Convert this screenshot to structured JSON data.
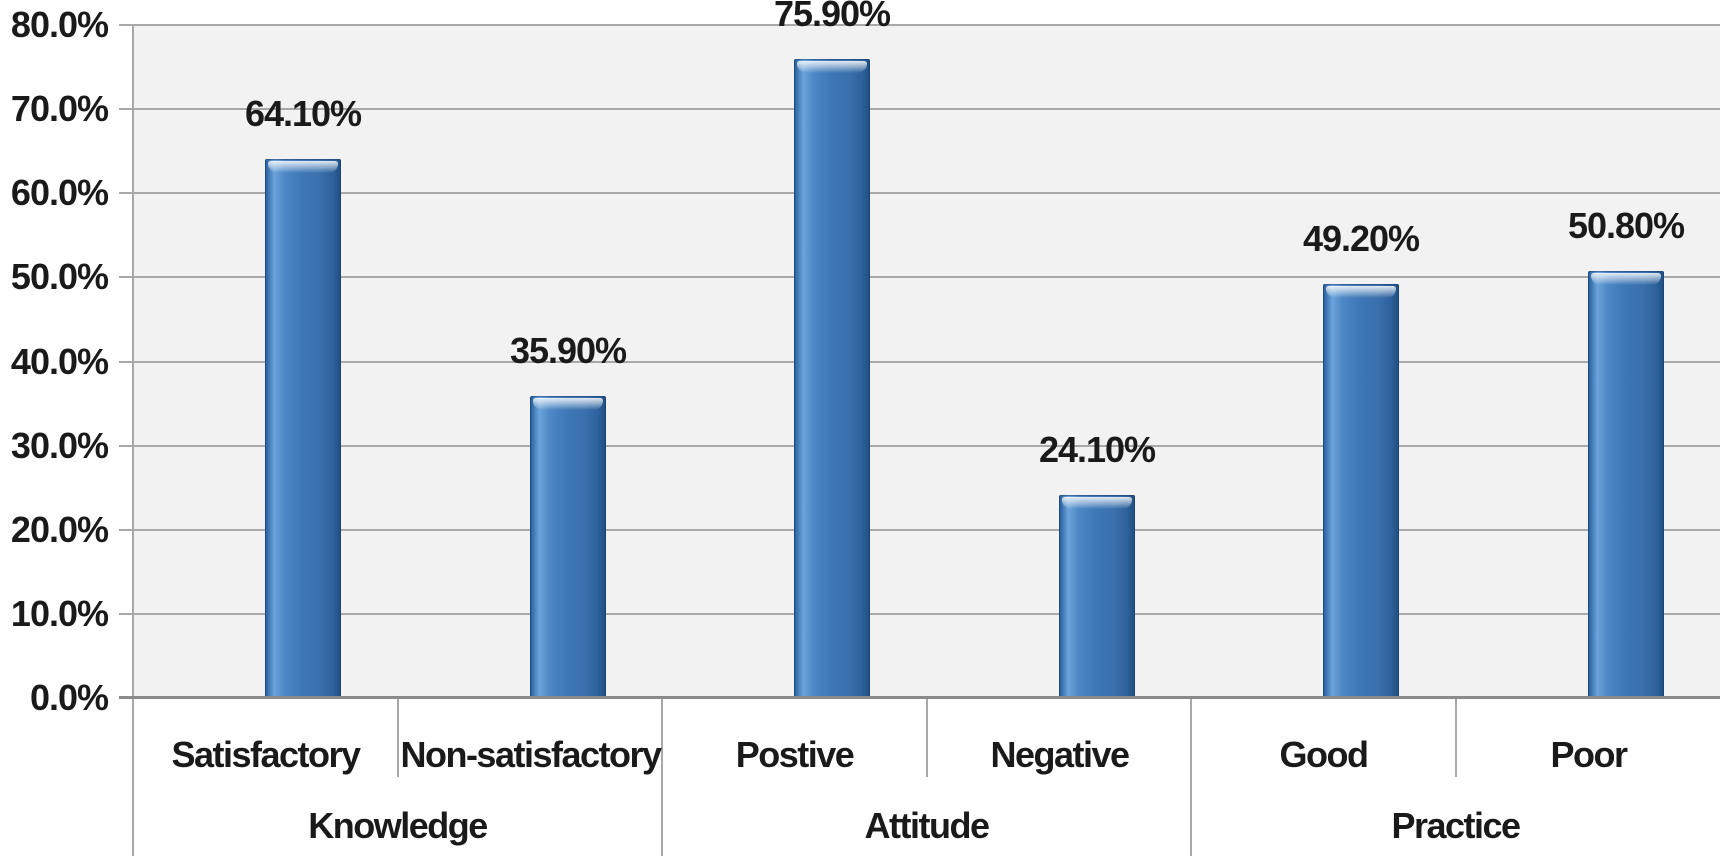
{
  "chart_data": {
    "type": "bar",
    "title": "",
    "xlabel": "",
    "ylabel": "",
    "ylim": [
      0,
      80
    ],
    "y_unit": "%",
    "grid": true,
    "legend_position": "none",
    "y_ticks": [
      {
        "value": 80,
        "label": "80.0%"
      },
      {
        "value": 70,
        "label": "70.0%"
      },
      {
        "value": 60,
        "label": "60.0%"
      },
      {
        "value": 50,
        "label": "50.0%"
      },
      {
        "value": 40,
        "label": "40.0%"
      },
      {
        "value": 30,
        "label": "30.0%"
      },
      {
        "value": 20,
        "label": "20.0%"
      },
      {
        "value": 10,
        "label": "10.0%"
      },
      {
        "value": 0,
        "label": "0.0%"
      }
    ],
    "groups": [
      {
        "label": "Knowledge",
        "bars": [
          {
            "category": "Satisfactory",
            "value": 64.1,
            "data_label": "64.10%"
          },
          {
            "category": "Non-satisfactory",
            "value": 35.9,
            "data_label": "35.90%"
          }
        ]
      },
      {
        "label": "Attitude",
        "bars": [
          {
            "category": "Postive",
            "value": 75.9,
            "data_label": "75.90%"
          },
          {
            "category": "Negative",
            "value": 24.1,
            "data_label": "24.10%"
          }
        ]
      },
      {
        "label": "Practice",
        "bars": [
          {
            "category": "Good",
            "value": 49.2,
            "data_label": "49.20%"
          },
          {
            "category": "Poor",
            "value": 50.8,
            "data_label": "50.80%"
          }
        ]
      }
    ],
    "colors": {
      "bar_fill": "#3E76B4",
      "bar_edge_dark": "#1E4D80",
      "bar_highlight": "#A9CEF2",
      "gridline": "#A8A8A8",
      "axis_line": "#8A8A8A",
      "divider": "#A8A8A8",
      "plot_background": "#F2F2F2",
      "page_background": "#FFFFFF",
      "text": "#1A1A1A"
    }
  }
}
